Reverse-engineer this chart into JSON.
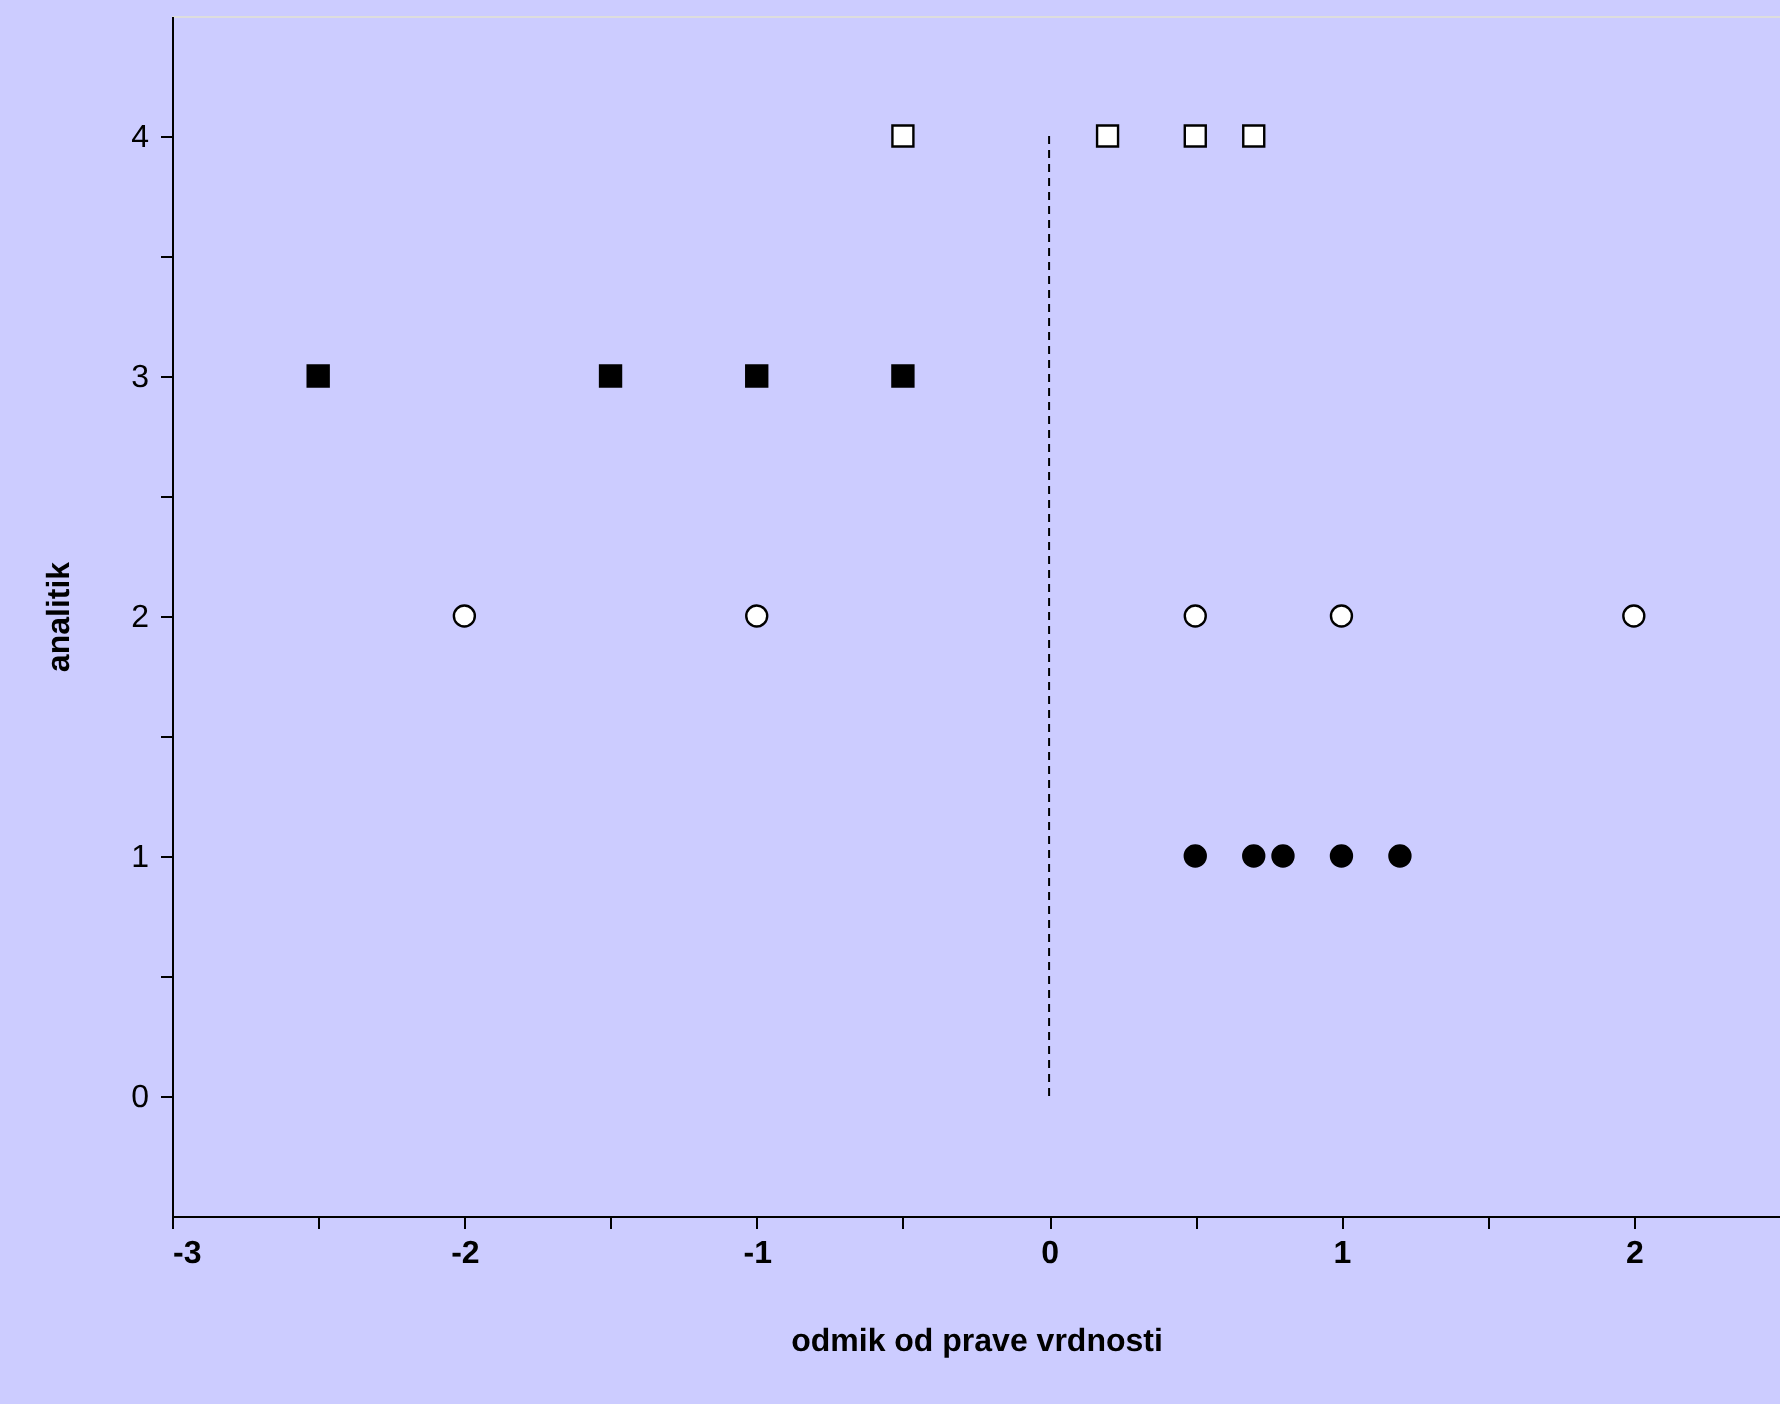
{
  "chart_data": {
    "type": "scatter",
    "xlabel": "odmik od prave vrdnosti",
    "ylabel": "analitik",
    "xlim": [
      -3,
      2.5
    ],
    "ylim": [
      -0.5,
      4.5
    ],
    "xticks": [
      -3,
      {
        "value": -2.5,
        "label": null
      },
      -2,
      {
        "value": -1.5,
        "label": null
      },
      -1,
      {
        "value": -0.5,
        "label": null
      },
      0,
      {
        "value": 0.5,
        "label": null
      },
      1,
      {
        "value": 1.5,
        "label": null
      },
      2
    ],
    "yticks": [
      0,
      {
        "value": 0.5,
        "label": null
      },
      1,
      {
        "value": 1.5,
        "label": null
      },
      2,
      {
        "value": 2.5,
        "label": null
      },
      3,
      {
        "value": 3.5,
        "label": null
      },
      4
    ],
    "grid": false,
    "ref_lines": [
      {
        "axis": "x",
        "value": 0,
        "color": "#000000",
        "line_style": "dashed"
      }
    ],
    "series": [
      {
        "color": "#000000",
        "marker": "circle",
        "x": [
          0.5,
          0.7,
          0.8,
          1.0,
          1.2
        ],
        "values": [
          1,
          1,
          1,
          1,
          1
        ]
      },
      {
        "color": "#ffffff",
        "marker": "circle",
        "x": [
          -2,
          -1,
          0.5,
          1,
          2
        ],
        "values": [
          2,
          2,
          2,
          2,
          2
        ]
      },
      {
        "color": "#000000",
        "marker": "square",
        "x": [
          -2.5,
          -1.5,
          -1,
          -0.5
        ],
        "values": [
          3,
          3,
          3,
          3
        ]
      },
      {
        "color": "#ffffff",
        "marker": "square",
        "x": [
          -0.5,
          0.2,
          0.5,
          0.7
        ],
        "values": [
          4,
          4,
          4,
          4
        ]
      }
    ]
  }
}
